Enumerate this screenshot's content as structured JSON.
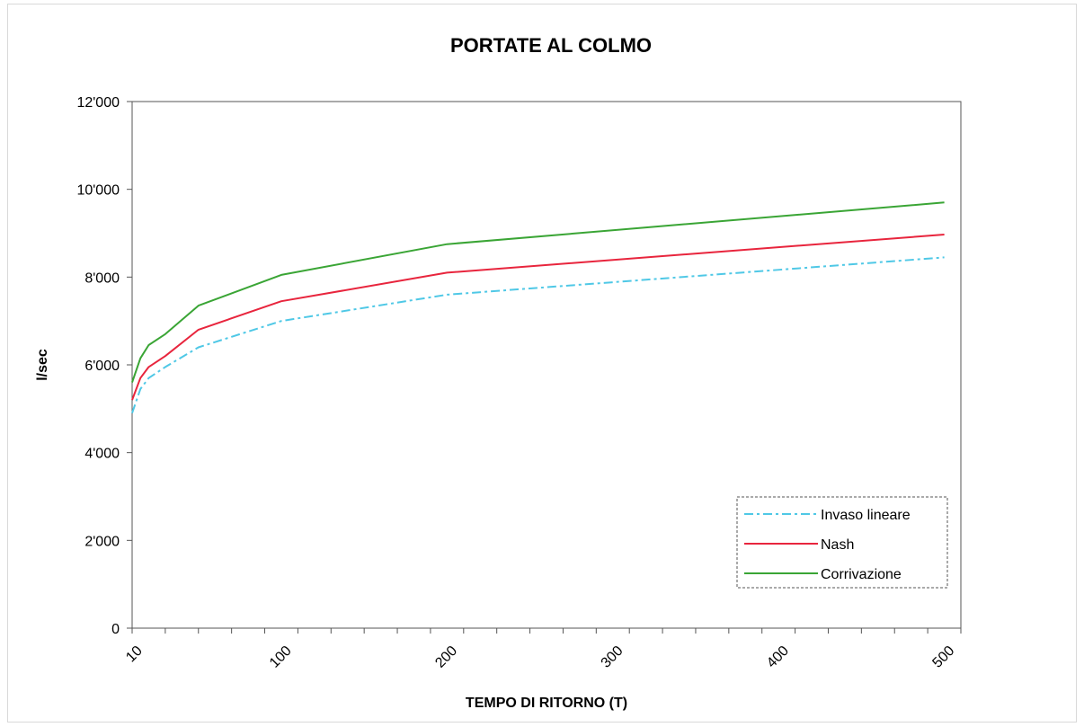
{
  "chart_data": {
    "type": "line",
    "title": "PORTATE AL COLMO",
    "xlabel": "TEMPO DI RITORNO (T)",
    "ylabel": "l/sec",
    "ylim": [
      0,
      12000
    ],
    "yticks": [
      0,
      2000,
      4000,
      6000,
      8000,
      10000,
      12000
    ],
    "ytick_labels": [
      "0",
      "2'000",
      "4'000",
      "6'000",
      "8'000",
      "10'000",
      "12'000"
    ],
    "xlim": [
      10,
      510
    ],
    "xticks": [
      10,
      100,
      200,
      300,
      400,
      500
    ],
    "xtick_labels": [
      "10",
      "100",
      "200",
      "300",
      "400",
      "500"
    ],
    "x_minor_step": 20,
    "grid": false,
    "legend_position": "bottom-right",
    "series": [
      {
        "name": "Invaso lineare",
        "color": "#4fc8e6",
        "style": "dash-dot",
        "x": [
          10,
          15,
          20,
          30,
          50,
          100,
          200,
          500
        ],
        "y": [
          4900,
          5450,
          5700,
          5950,
          6400,
          7000,
          7600,
          8450
        ]
      },
      {
        "name": "Nash",
        "color": "#e8253d",
        "style": "solid",
        "x": [
          10,
          15,
          20,
          30,
          50,
          100,
          200,
          500
        ],
        "y": [
          5200,
          5700,
          5950,
          6200,
          6800,
          7450,
          8100,
          8970
        ]
      },
      {
        "name": "Corrivazione",
        "color": "#3aa535",
        "style": "solid",
        "x": [
          10,
          15,
          20,
          30,
          50,
          100,
          200,
          500
        ],
        "y": [
          5600,
          6150,
          6450,
          6700,
          7350,
          8050,
          8750,
          9700
        ]
      }
    ]
  }
}
